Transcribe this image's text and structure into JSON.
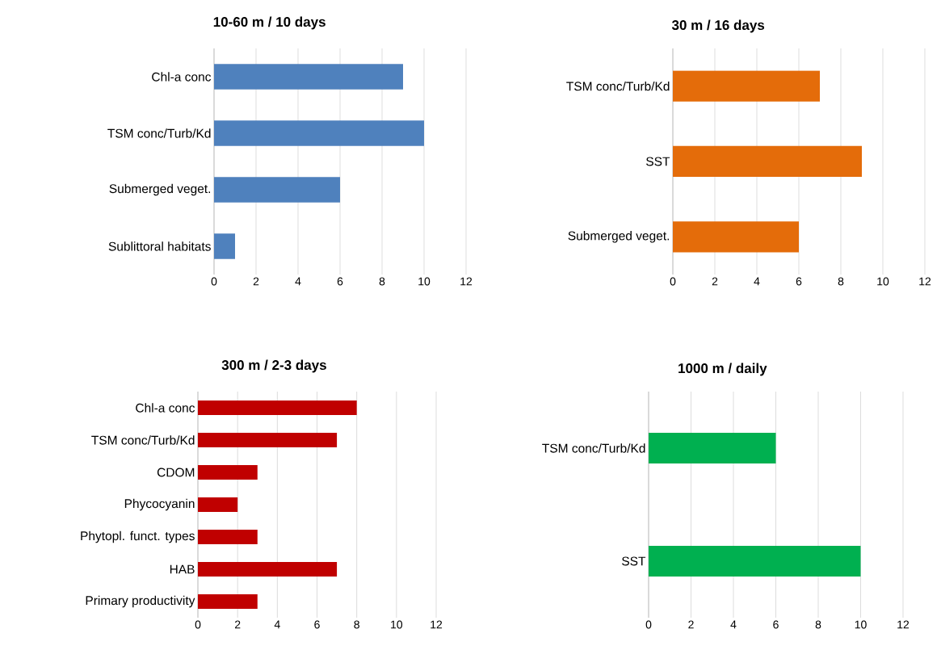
{
  "chart_data": [
    {
      "type": "bar",
      "orientation": "horizontal",
      "title": "10-60 m / 10 days",
      "categories": [
        "Chl-a conc",
        "TSM conc/Turb/Kd",
        "Submerged veget.",
        "Sublittoral habitats"
      ],
      "values": [
        9,
        10,
        6,
        1
      ],
      "color": "#4f81bd",
      "xlim": [
        0,
        12
      ],
      "xticks": [
        0,
        2,
        4,
        6,
        8,
        10,
        12
      ],
      "grid": "x"
    },
    {
      "type": "bar",
      "orientation": "horizontal",
      "title": "30 m / 16 days",
      "categories": [
        "TSM conc/Turb/Kd",
        "SST",
        "Submerged veget."
      ],
      "values": [
        7,
        9,
        6
      ],
      "color": "#e46c0a",
      "xlim": [
        0,
        12
      ],
      "xticks": [
        0,
        2,
        4,
        6,
        8,
        10,
        12
      ],
      "grid": "x"
    },
    {
      "type": "bar",
      "orientation": "horizontal",
      "title": "300 m / 2-3 days",
      "categories": [
        "Chl-a conc",
        "TSM conc/Turb/Kd",
        "CDOM",
        "Phycocyanin",
        "Phytopl. funct. types",
        "HAB",
        "Primary productivity"
      ],
      "values": [
        8,
        7,
        3,
        2,
        3,
        7,
        3
      ],
      "color": "#c00000",
      "xlim": [
        0,
        12
      ],
      "xticks": [
        0,
        2,
        4,
        6,
        8,
        10,
        12
      ],
      "grid": "x"
    },
    {
      "type": "bar",
      "orientation": "horizontal",
      "title": "1000 m / daily",
      "categories": [
        "TSM conc/Turb/Kd",
        "SST"
      ],
      "values": [
        6,
        10
      ],
      "color": "#00b050",
      "xlim": [
        0,
        12
      ],
      "xticks": [
        0,
        2,
        4,
        6,
        8,
        10,
        12
      ],
      "grid": "x"
    }
  ]
}
